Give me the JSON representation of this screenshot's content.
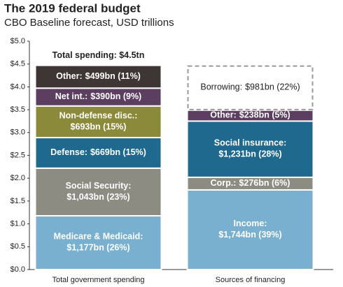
{
  "chart_data": {
    "type": "stacked-bar",
    "title": "The 2019 federal budget",
    "subtitle": "CBO Baseline forecast, USD trillions",
    "annotation": "Total spending: $4.5tn",
    "ylim": [
      0,
      5
    ],
    "yticks": [
      {
        "value": 0,
        "label": "$0.0"
      },
      {
        "value": 0.5,
        "label": "$0.5"
      },
      {
        "value": 1,
        "label": "$1.0"
      },
      {
        "value": 1.5,
        "label": "$1.5"
      },
      {
        "value": 2,
        "label": "$2.0"
      },
      {
        "value": 2.5,
        "label": "$2.5"
      },
      {
        "value": 3,
        "label": "$3.0"
      },
      {
        "value": 3.5,
        "label": "$3.5"
      },
      {
        "value": 4,
        "label": "$4.0"
      },
      {
        "value": 4.5,
        "label": "$4.5"
      },
      {
        "value": 5,
        "label": "$5.0"
      }
    ],
    "bars": [
      {
        "category": "Total government spending",
        "segments": [
          {
            "name": "Medicare & Medicaid:",
            "value": 1.177,
            "value_label": "$1,177bn (26%)",
            "color": "#79b0cf"
          },
          {
            "name": "Social Security:",
            "value": 1.043,
            "value_label": "$1,043bn (23%)",
            "color": "#8d8c82"
          },
          {
            "name": "Defense:",
            "value": 0.669,
            "value_label": "$669bn (15%)",
            "color": "#1f698f"
          },
          {
            "name": "Non-defense disc.:",
            "value": 0.693,
            "value_label": "$693bn (15%)",
            "color": "#8b8a3b"
          },
          {
            "name": "Net int.:",
            "value": 0.39,
            "value_label": "$390bn (9%)",
            "color": "#5c3e60"
          },
          {
            "name": "Other:",
            "value": 0.499,
            "value_label": "$499bn (11%)",
            "color": "#3e3634"
          }
        ]
      },
      {
        "category": "Sources of financing",
        "segments": [
          {
            "name": "Income:",
            "value": 1.744,
            "value_label": "$1,744bn (39%)",
            "color": "#79b0cf"
          },
          {
            "name": "Corp.:",
            "value": 0.276,
            "value_label": "$276bn (6%)",
            "color": "#8d8c82"
          },
          {
            "name": "Social insurance:",
            "value": 1.231,
            "value_label": "$1,231bn (28%)",
            "color": "#1f698f"
          },
          {
            "name": "Other:",
            "value": 0.238,
            "value_label": "$238bn (5%)",
            "color": "#5c3e60"
          },
          {
            "name": "Borrowing:",
            "value": 0.981,
            "value_label": "$981bn (22%)",
            "color": "#999999",
            "dashed": true
          }
        ]
      }
    ]
  }
}
